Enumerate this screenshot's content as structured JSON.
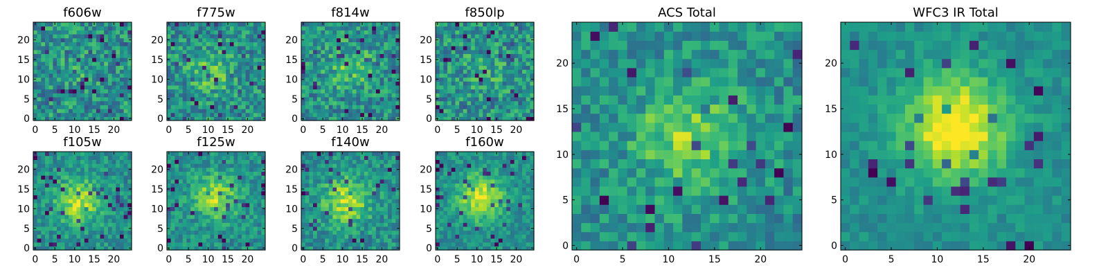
{
  "chart_data": [
    {
      "type": "heatmap",
      "title": "f606w",
      "xlim": [
        -0.5,
        24.5
      ],
      "ylim": [
        -0.5,
        24.5
      ],
      "x_ticks": [
        "0",
        "5",
        "10",
        "15",
        "20"
      ],
      "y_ticks": [
        "0",
        "5",
        "10",
        "15",
        "20"
      ],
      "grid": false,
      "colormap": "viridis",
      "center": {
        "x": 12,
        "y": 12
      },
      "peak_strength": 0.08,
      "noise": 0.3,
      "seed": 11
    },
    {
      "type": "heatmap",
      "title": "f775w",
      "xlim": [
        -0.5,
        24.5
      ],
      "ylim": [
        -0.5,
        24.5
      ],
      "x_ticks": [
        "0",
        "5",
        "10",
        "15",
        "20"
      ],
      "y_ticks": [
        "0",
        "5",
        "10",
        "15",
        "20"
      ],
      "grid": false,
      "colormap": "viridis",
      "center": {
        "x": 11,
        "y": 12
      },
      "peak_strength": 0.22,
      "noise": 0.28,
      "seed": 23
    },
    {
      "type": "heatmap",
      "title": "f814w",
      "xlim": [
        -0.5,
        24.5
      ],
      "ylim": [
        -0.5,
        24.5
      ],
      "x_ticks": [
        "0",
        "5",
        "10",
        "15",
        "20"
      ],
      "y_ticks": [
        "0",
        "5",
        "10",
        "15",
        "20"
      ],
      "grid": false,
      "colormap": "viridis",
      "center": {
        "x": 12,
        "y": 13
      },
      "peak_strength": 0.22,
      "noise": 0.28,
      "seed": 37
    },
    {
      "type": "heatmap",
      "title": "f850lp",
      "xlim": [
        -0.5,
        24.5
      ],
      "ylim": [
        -0.5,
        24.5
      ],
      "x_ticks": [
        "0",
        "5",
        "10",
        "15",
        "20"
      ],
      "y_ticks": [
        "0",
        "5",
        "10",
        "15",
        "20"
      ],
      "grid": false,
      "colormap": "viridis",
      "center": {
        "x": 12,
        "y": 12
      },
      "peak_strength": 0.1,
      "noise": 0.3,
      "seed": 41
    },
    {
      "type": "heatmap",
      "title": "f105w",
      "xlim": [
        -0.5,
        24.5
      ],
      "ylim": [
        -0.5,
        24.5
      ],
      "x_ticks": [
        "0",
        "5",
        "10",
        "15",
        "20"
      ],
      "y_ticks": [
        "0",
        "5",
        "10",
        "15",
        "20"
      ],
      "grid": false,
      "colormap": "viridis",
      "center": {
        "x": 11,
        "y": 12
      },
      "peak_strength": 0.4,
      "noise": 0.2,
      "seed": 53
    },
    {
      "type": "heatmap",
      "title": "f125w",
      "xlim": [
        -0.5,
        24.5
      ],
      "ylim": [
        -0.5,
        24.5
      ],
      "x_ticks": [
        "0",
        "5",
        "10",
        "15",
        "20"
      ],
      "y_ticks": [
        "0",
        "5",
        "10",
        "15",
        "20"
      ],
      "grid": false,
      "colormap": "viridis",
      "center": {
        "x": 12,
        "y": 13
      },
      "peak_strength": 0.38,
      "noise": 0.2,
      "seed": 67
    },
    {
      "type": "heatmap",
      "title": "f140w",
      "xlim": [
        -0.5,
        24.5
      ],
      "ylim": [
        -0.5,
        24.5
      ],
      "x_ticks": [
        "0",
        "5",
        "10",
        "15",
        "20"
      ],
      "y_ticks": [
        "0",
        "5",
        "10",
        "15",
        "20"
      ],
      "grid": false,
      "colormap": "viridis",
      "center": {
        "x": 11,
        "y": 12
      },
      "peak_strength": 0.4,
      "noise": 0.22,
      "seed": 79
    },
    {
      "type": "heatmap",
      "title": "f160w",
      "xlim": [
        -0.5,
        24.5
      ],
      "ylim": [
        -0.5,
        24.5
      ],
      "x_ticks": [
        "0",
        "5",
        "10",
        "15",
        "20"
      ],
      "y_ticks": [
        "0",
        "5",
        "10",
        "15",
        "20"
      ],
      "grid": false,
      "colormap": "viridis",
      "center": {
        "x": 11,
        "y": 13
      },
      "peak_strength": 0.45,
      "noise": 0.18,
      "seed": 83
    },
    {
      "type": "heatmap",
      "title": "ACS Total",
      "xlim": [
        -0.5,
        24.5
      ],
      "ylim": [
        -0.5,
        24.5
      ],
      "x_ticks": [
        "0",
        "5",
        "10",
        "15",
        "20"
      ],
      "y_ticks": [
        "0",
        "5",
        "10",
        "15",
        "20"
      ],
      "grid": false,
      "colormap": "viridis",
      "center": {
        "x": 12,
        "y": 12
      },
      "peak_strength": 0.32,
      "noise": 0.22,
      "seed": 97
    },
    {
      "type": "heatmap",
      "title": "WFC3 IR Total",
      "xlim": [
        -0.5,
        24.5
      ],
      "ylim": [
        -0.5,
        24.5
      ],
      "x_ticks": [
        "0",
        "5",
        "10",
        "15",
        "20"
      ],
      "y_ticks": [
        "0",
        "5",
        "10",
        "15",
        "20"
      ],
      "grid": false,
      "colormap": "viridis",
      "center": {
        "x": 12,
        "y": 13
      },
      "peak_strength": 0.55,
      "noise": 0.12,
      "seed": 101
    }
  ]
}
